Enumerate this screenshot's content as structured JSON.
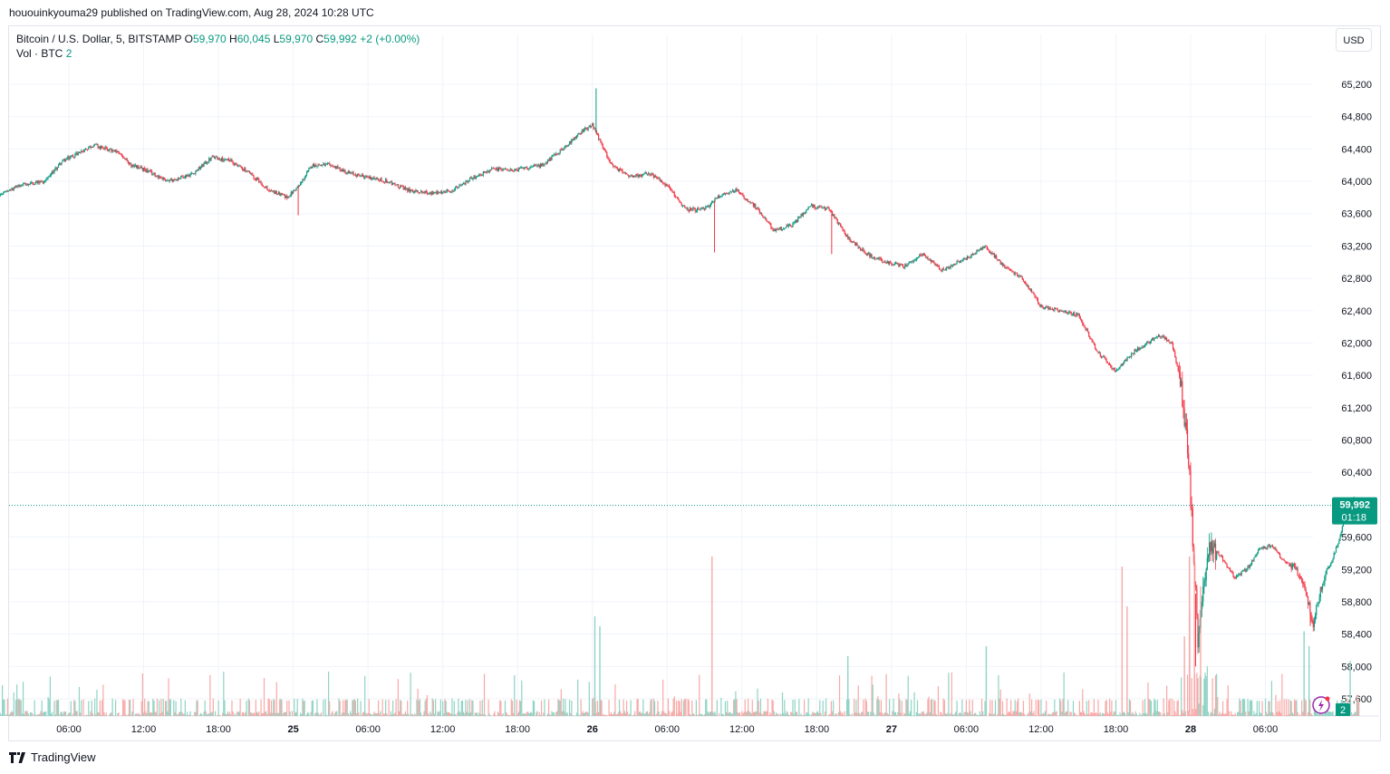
{
  "header": {
    "published": "hououinkyouma29 published on TradingView.com, Aug 28, 2024 10:28 UTC"
  },
  "legend": {
    "symbol": "Bitcoin / U.S. Dollar, 5, BITSTAMP",
    "o_label": "O",
    "o_value": "59,970",
    "h_label": "H",
    "h_value": "60,045",
    "l_label": "L",
    "l_value": "59,970",
    "c_label": "C",
    "c_value": "59,992",
    "change": "+2 (+0.00%)",
    "vol_label": "Vol · BTC",
    "vol_value": "2"
  },
  "currency_button": "USD",
  "price_badge": {
    "price": "59,992",
    "countdown": "01:18"
  },
  "volume_badge": "2",
  "footer": {
    "brand": "TradingView"
  },
  "colors": {
    "up": "#089981",
    "down": "#f23645",
    "up_vol": "#8fd3c4",
    "down_vol": "#f7a9a7",
    "grid": "#f0f3fa",
    "last_line": "#089981"
  },
  "chart_data": {
    "type": "candlestick",
    "title": "Bitcoin / U.S. Dollar, 5, BITSTAMP",
    "ylim": [
      57500,
      65500
    ],
    "y_ticks": [
      57600,
      58000,
      58400,
      58800,
      59200,
      59600,
      60400,
      60800,
      61200,
      61600,
      62000,
      62400,
      62800,
      63200,
      63600,
      64000,
      64400,
      64800,
      65200
    ],
    "y_tick_labels": [
      "57,600",
      "58,000",
      "58,400",
      "58,800",
      "59,200",
      "59,600",
      "60,400",
      "60,800",
      "61,200",
      "61,600",
      "62,000",
      "62,400",
      "62,800",
      "63,200",
      "63,600",
      "64,000",
      "64,400",
      "64,800",
      "65,200"
    ],
    "x_hours": [
      -10.5,
      81.9
    ],
    "x_ticks": [
      {
        "h": 6,
        "label": "06:00"
      },
      {
        "h": 12,
        "label": "12:00"
      },
      {
        "h": 18,
        "label": "18:00"
      },
      {
        "h": 24,
        "label": "25"
      },
      {
        "h": 30,
        "label": "06:00"
      },
      {
        "h": 36,
        "label": "12:00"
      },
      {
        "h": 42,
        "label": "18:00"
      },
      {
        "h": 48,
        "label": "26"
      },
      {
        "h": 54,
        "label": "06:00"
      },
      {
        "h": 60,
        "label": "12:00"
      },
      {
        "h": 66,
        "label": "18:00"
      },
      {
        "h": 72,
        "label": "27"
      },
      {
        "h": 78,
        "label": "06:00"
      },
      {
        "h": 84,
        "label": "12:00"
      },
      {
        "h": 90,
        "label": "18:00"
      },
      {
        "h": 96,
        "label": "28"
      },
      {
        "h": 102,
        "label": "06:00"
      }
    ],
    "x_bold_labels": [
      "25",
      "26",
      "27",
      "28"
    ],
    "price_path": [
      [
        0,
        63800
      ],
      [
        2,
        63950
      ],
      [
        4,
        64000
      ],
      [
        5.5,
        64250
      ],
      [
        8,
        64450
      ],
      [
        10,
        64350
      ],
      [
        11,
        64200
      ],
      [
        12,
        64150
      ],
      [
        14,
        64000
      ],
      [
        16,
        64100
      ],
      [
        17.5,
        64300
      ],
      [
        19,
        64250
      ],
      [
        20.5,
        64100
      ],
      [
        22,
        63900
      ],
      [
        23.5,
        63800
      ],
      [
        24.5,
        63950
      ],
      [
        25.5,
        64200
      ],
      [
        27,
        64200
      ],
      [
        28.5,
        64100
      ],
      [
        30,
        64050
      ],
      [
        31.5,
        64000
      ],
      [
        33,
        63900
      ],
      [
        35,
        63850
      ],
      [
        37,
        63900
      ],
      [
        38.5,
        64050
      ],
      [
        40,
        64150
      ],
      [
        42,
        64150
      ],
      [
        44,
        64200
      ],
      [
        46,
        64450
      ],
      [
        47,
        64600
      ],
      [
        48,
        64700
      ],
      [
        48.6,
        64500
      ],
      [
        49.5,
        64200
      ],
      [
        51,
        64050
      ],
      [
        52.5,
        64100
      ],
      [
        54,
        63950
      ],
      [
        55.5,
        63650
      ],
      [
        57,
        63650
      ],
      [
        58,
        63800
      ],
      [
        59.5,
        63900
      ],
      [
        61,
        63700
      ],
      [
        62.5,
        63400
      ],
      [
        64,
        63450
      ],
      [
        65.5,
        63700
      ],
      [
        67,
        63650
      ],
      [
        68.5,
        63300
      ],
      [
        70,
        63100
      ],
      [
        71.5,
        63000
      ],
      [
        73,
        62950
      ],
      [
        74.5,
        63100
      ],
      [
        76,
        62900
      ],
      [
        78,
        63050
      ],
      [
        79.5,
        63200
      ],
      [
        81,
        62950
      ],
      [
        82.5,
        62800
      ],
      [
        84,
        62450
      ],
      [
        85.5,
        62400
      ],
      [
        87,
        62350
      ],
      [
        88.5,
        61900
      ],
      [
        90,
        61650
      ],
      [
        91.5,
        61900
      ],
      [
        92.5,
        62000
      ],
      [
        93.5,
        62100
      ],
      [
        94.5,
        62000
      ],
      [
        95.2,
        61500
      ],
      [
        95.8,
        60700
      ],
      [
        96.2,
        59500
      ],
      [
        96.6,
        58300
      ],
      [
        97,
        59000
      ],
      [
        97.5,
        59500
      ],
      [
        98.5,
        59350
      ],
      [
        99.5,
        59100
      ],
      [
        100.5,
        59200
      ],
      [
        101.5,
        59450
      ],
      [
        102.5,
        59500
      ],
      [
        103.5,
        59300
      ],
      [
        104.5,
        59200
      ],
      [
        105.3,
        58900
      ],
      [
        105.8,
        58500
      ],
      [
        106.5,
        59000
      ],
      [
        107.3,
        59300
      ],
      [
        108,
        59600
      ],
      [
        108.5,
        60000
      ],
      [
        109,
        59950
      ],
      [
        109.5,
        59992
      ]
    ],
    "spikes": [
      {
        "h": 24.4,
        "low": 63580
      },
      {
        "h": 48.3,
        "high": 65150
      },
      {
        "h": 57.8,
        "low": 63120
      },
      {
        "h": 67.2,
        "low": 63100
      },
      {
        "h": 96.4,
        "low": 58000
      },
      {
        "h": 105.6,
        "low": 58500
      },
      {
        "h": 109.1,
        "high": 60100
      }
    ],
    "volume_spikes": [
      {
        "h": 48.2,
        "v": 1.0
      },
      {
        "h": 48.6,
        "v": 0.9
      },
      {
        "h": 57.6,
        "v": 1.6
      },
      {
        "h": 68.5,
        "v": 0.6
      },
      {
        "h": 79.6,
        "v": 0.7
      },
      {
        "h": 90.5,
        "v": 1.5
      },
      {
        "h": 90.9,
        "v": 1.1
      },
      {
        "h": 95.5,
        "v": 0.8
      },
      {
        "h": 95.9,
        "v": 1.6
      },
      {
        "h": 96.3,
        "v": 1.7
      },
      {
        "h": 96.8,
        "v": 1.3
      },
      {
        "h": 105.1,
        "v": 0.85
      },
      {
        "h": 105.5,
        "v": 0.7
      },
      {
        "h": 108.8,
        "v": 0.55
      }
    ],
    "last_price": 59992
  }
}
